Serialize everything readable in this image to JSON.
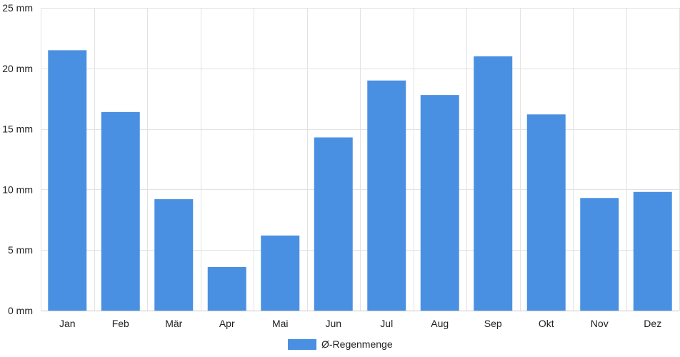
{
  "chart_data": {
    "type": "bar",
    "categories": [
      "Jan",
      "Feb",
      "Mär",
      "Apr",
      "Mai",
      "Jun",
      "Jul",
      "Aug",
      "Sep",
      "Okt",
      "Nov",
      "Dez"
    ],
    "series": [
      {
        "name": "Ø-Regenmenge",
        "color": "#4a90e2",
        "values": [
          21.5,
          16.4,
          9.2,
          3.6,
          6.2,
          14.3,
          19.0,
          17.8,
          21.0,
          16.2,
          9.3,
          9.8
        ]
      }
    ],
    "title": "",
    "xlabel": "",
    "ylabel": "",
    "ylim": [
      0,
      25
    ],
    "yticks": [
      0,
      5,
      10,
      15,
      20,
      25
    ],
    "ytick_suffix": " mm",
    "grid": true,
    "legend": "bottom-center"
  }
}
